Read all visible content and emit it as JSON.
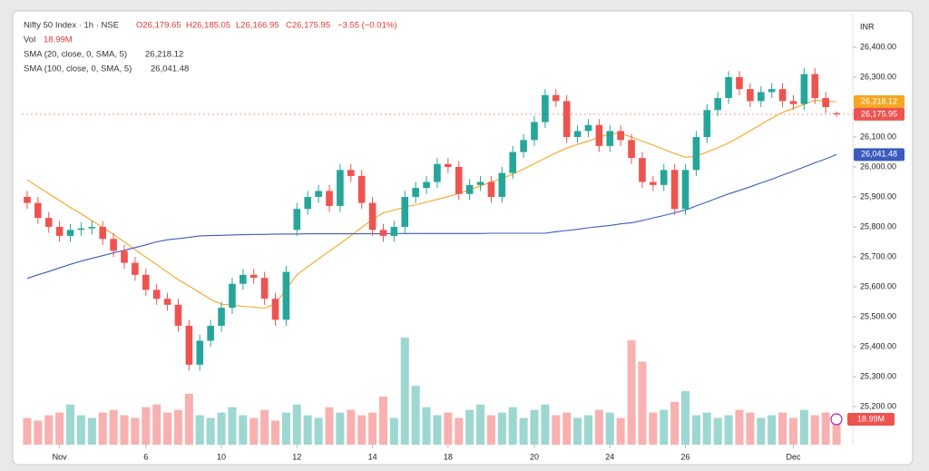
{
  "chart_data": {
    "type": "candlestick",
    "title": "Nifty 50 Index · 1h · NSE",
    "ohlc_labels": [
      "O26,179.65",
      "H26,185.05",
      "L26,166.95",
      "C26,175.95"
    ],
    "change_label": "−3.55 (−0.01%)",
    "y_axis_label": "INR",
    "up_color": "#26a69a",
    "down_color": "#ef5350",
    "close_label": "26,175.95",
    "open": [
      25900,
      25880,
      25830,
      25800,
      25770,
      25790,
      25795,
      25800,
      25760,
      25720,
      25680,
      25640,
      25590,
      25560,
      25540,
      25470,
      25340,
      25420,
      25470,
      25530,
      25610,
      25640,
      25630,
      25560,
      25490,
      25790,
      25860,
      25900,
      25920,
      25870,
      25990,
      25970,
      25880,
      25790,
      25770,
      25800,
      25900,
      25930,
      25950,
      26010,
      26000,
      25910,
      25940,
      25950,
      25900,
      25980,
      26050,
      26090,
      26150,
      26240,
      26220,
      26100,
      26120,
      26140,
      26070,
      26120,
      26090,
      26030,
      25950,
      25940,
      25990,
      25860,
      25990,
      26100,
      26190,
      26230,
      26300,
      26260,
      26220,
      26250,
      26260,
      26220,
      26210,
      26310,
      26230,
      26179.65
    ],
    "high": [
      25920,
      25900,
      25850,
      25820,
      25810,
      25815,
      25820,
      25820,
      25780,
      25740,
      25700,
      25660,
      25610,
      25580,
      25560,
      25490,
      25440,
      25490,
      25550,
      25630,
      25660,
      25660,
      25650,
      25580,
      25670,
      25880,
      25920,
      25940,
      25940,
      26010,
      26010,
      25990,
      25900,
      25810,
      25820,
      25920,
      25950,
      25970,
      26030,
      26030,
      26020,
      25960,
      25970,
      25970,
      26000,
      26070,
      26110,
      26170,
      26260,
      26260,
      26240,
      26140,
      26160,
      26160,
      26140,
      26140,
      26110,
      26050,
      25970,
      26010,
      26010,
      26010,
      26120,
      26210,
      26250,
      26320,
      26320,
      26280,
      26270,
      26280,
      26280,
      26240,
      26330,
      26330,
      26250,
      26185.05
    ],
    "low": [
      25860,
      25810,
      25780,
      25750,
      25750,
      25770,
      25775,
      25740,
      25700,
      25660,
      25620,
      25570,
      25540,
      25520,
      25450,
      25320,
      25320,
      25400,
      25450,
      25510,
      25590,
      25610,
      25540,
      25470,
      25470,
      25770,
      25840,
      25880,
      25850,
      25850,
      25950,
      25860,
      25770,
      25750,
      25750,
      25780,
      25880,
      25910,
      25930,
      25980,
      25890,
      25890,
      25920,
      25880,
      25880,
      25960,
      26030,
      26070,
      26130,
      26200,
      26080,
      26080,
      26100,
      26050,
      26050,
      26070,
      26010,
      25930,
      25920,
      25920,
      25840,
      25840,
      25970,
      26080,
      26170,
      26210,
      26240,
      26200,
      26200,
      26230,
      26200,
      26190,
      26190,
      26210,
      26180,
      26166.95
    ],
    "close": [
      25880,
      25830,
      25800,
      25770,
      25790,
      25795,
      25800,
      25760,
      25720,
      25680,
      25640,
      25590,
      25560,
      25540,
      25470,
      25340,
      25420,
      25470,
      25530,
      25610,
      25640,
      25630,
      25560,
      25490,
      25650,
      25860,
      25900,
      25920,
      25870,
      25990,
      25970,
      25880,
      25790,
      25770,
      25800,
      25900,
      25930,
      25950,
      26010,
      26000,
      25910,
      25940,
      25950,
      25900,
      25980,
      26050,
      26090,
      26150,
      26240,
      26220,
      26100,
      26120,
      26140,
      26070,
      26120,
      26090,
      26030,
      25950,
      25940,
      25990,
      25860,
      25990,
      26100,
      26190,
      26230,
      26300,
      26260,
      26220,
      26250,
      26260,
      26220,
      26210,
      26310,
      26230,
      26200,
      26175.95
    ],
    "volume": {
      "name": "Vol",
      "value_label": "18.99M",
      "values": [
        20,
        18,
        22,
        24,
        30,
        22,
        20,
        24,
        26,
        22,
        20,
        28,
        30,
        24,
        26,
        38,
        22,
        20,
        24,
        28,
        22,
        20,
        26,
        18,
        24,
        30,
        22,
        20,
        28,
        24,
        26,
        22,
        24,
        36,
        20,
        80,
        44,
        28,
        22,
        24,
        20,
        26,
        30,
        22,
        24,
        28,
        20,
        26,
        30,
        22,
        24,
        20,
        22,
        26,
        24,
        20,
        78,
        62,
        24,
        26,
        32,
        40,
        22,
        24,
        20,
        22,
        26,
        24,
        20,
        22,
        24,
        20,
        26,
        22,
        24,
        18.99
      ]
    },
    "series": [
      {
        "name": "SMA (20, close, 0, SMA, 5)",
        "color": "#f5a623",
        "value_label": "26,218.12",
        "values": [
          25957,
          25934,
          25911,
          25888,
          25865,
          25844,
          25821,
          25798,
          25775,
          25750,
          25724,
          25699,
          25674,
          25649,
          25624,
          25603,
          25580,
          25558,
          25542,
          25539,
          25535,
          25532,
          25529,
          25543,
          25592,
          25640,
          25667,
          25693,
          25719,
          25744,
          25771,
          25798,
          25825,
          25847,
          25856,
          25866,
          25874,
          25883,
          25892,
          25901,
          25912,
          25924,
          25937,
          25949,
          25961,
          25976,
          25993,
          26011,
          26029,
          26047,
          26063,
          26075,
          26087,
          26099,
          26111,
          26112,
          26100,
          26086,
          26073,
          26059,
          26045,
          26032,
          26036,
          26050,
          26064,
          26080,
          26100,
          26121,
          26142,
          26163,
          26182,
          26196,
          26209,
          26223,
          26220,
          26218.12
        ]
      },
      {
        "name": "SMA (100, close, 0, SMA, 5)",
        "color": "#3b5bbf",
        "value_label": "26,041.48",
        "values": [
          25628,
          25640,
          25651,
          25663,
          25675,
          25686,
          25695,
          25704,
          25713,
          25722,
          25731,
          25740,
          25750,
          25757,
          25761,
          25765,
          25770,
          25771,
          25772,
          25773,
          25774,
          25775,
          25775,
          25776,
          25776,
          25776,
          25777,
          25777,
          25777,
          25777,
          25777,
          25777,
          25777,
          25777,
          25778,
          25778,
          25778,
          25778,
          25778,
          25778,
          25778,
          25778,
          25778,
          25779,
          25779,
          25779,
          25779,
          25779,
          25779,
          25784,
          25788,
          25792,
          25797,
          25801,
          25805,
          25810,
          25814,
          25821,
          25830,
          25838,
          25847,
          25856,
          25870,
          25883,
          25897,
          25910,
          25922,
          25934,
          25947,
          25959,
          25973,
          25986,
          26000,
          26014,
          26027,
          26041.48
        ]
      }
    ],
    "ylim": [
      25073,
      26512
    ],
    "yticks": [
      {
        "value": 26400,
        "label": "26,400.00"
      },
      {
        "value": 26300,
        "label": "26,300.00"
      },
      {
        "value": 26100,
        "label": "26,100.00"
      },
      {
        "value": 26000,
        "label": "26,000.00"
      },
      {
        "value": 25900,
        "label": "25,900.00"
      },
      {
        "value": 25800,
        "label": "25,800.00"
      },
      {
        "value": 25700,
        "label": "25,700.00"
      },
      {
        "value": 25600,
        "label": "25,600.00"
      },
      {
        "value": 25500,
        "label": "25,500.00"
      },
      {
        "value": 25400,
        "label": "25,400.00"
      },
      {
        "value": 25300,
        "label": "25,300.00"
      },
      {
        "value": 25200,
        "label": "25,200.00"
      }
    ],
    "xlim": [
      -0.5,
      75.5
    ],
    "xticks": [
      {
        "value": 3,
        "label": "Nov"
      },
      {
        "value": 11,
        "label": "6"
      },
      {
        "value": 18,
        "label": "10"
      },
      {
        "value": 25,
        "label": "12"
      },
      {
        "value": 32,
        "label": "14"
      },
      {
        "value": 39,
        "label": "18"
      },
      {
        "value": 47,
        "label": "20"
      },
      {
        "value": 54,
        "label": "24"
      },
      {
        "value": 61,
        "label": "26"
      },
      {
        "value": 71,
        "label": "Dec"
      }
    ],
    "grid": false
  }
}
